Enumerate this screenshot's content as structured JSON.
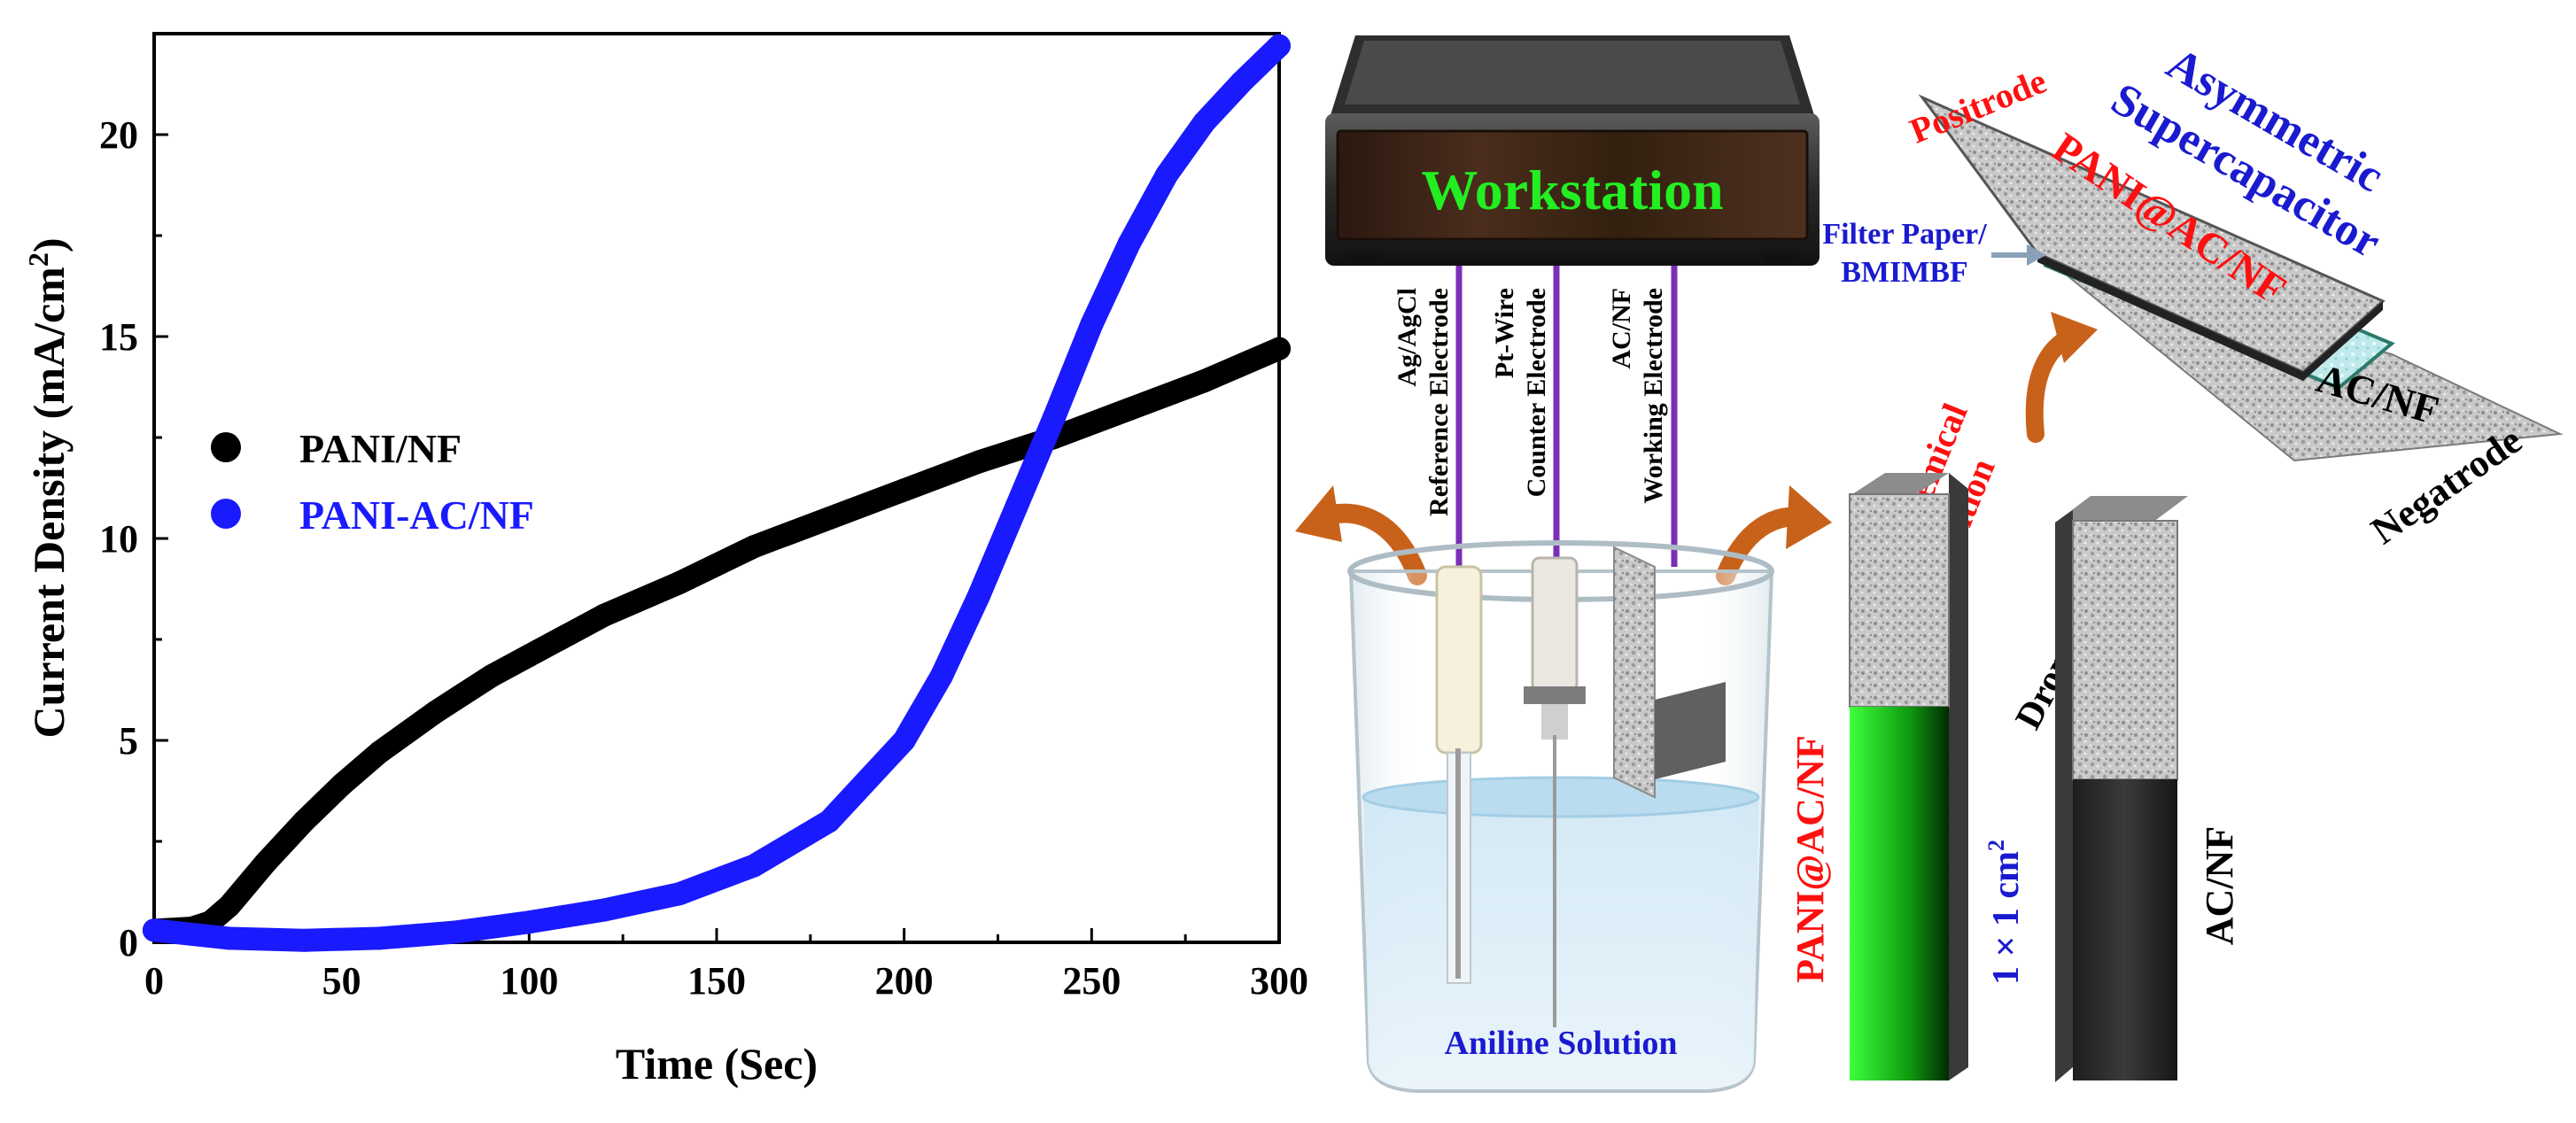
{
  "colors": {
    "series_black": "#000000",
    "series_blue": "#1a1aff",
    "label_red": "#ff1010",
    "label_blue": "#1a1ad0",
    "label_green": "#22ee22",
    "arrow_orange": "#c8621b",
    "wire_purple": "#7a2fb5"
  },
  "chart_data": {
    "type": "line",
    "xlabel": "Time (Sec)",
    "ylabel": "Current Density (mA/cm",
    "ylabel_sup": "2",
    "ylabel_end": ")",
    "xlim": [
      0,
      300
    ],
    "ylim": [
      0,
      22.5
    ],
    "x_ticks": [
      0,
      50,
      100,
      150,
      200,
      250,
      300
    ],
    "y_ticks": [
      0,
      5,
      10,
      15,
      20
    ],
    "legend_position": "center-left",
    "grid": false,
    "series": [
      {
        "name": "PANI/NF",
        "color": "#000000",
        "x": [
          0,
          10,
          15,
          20,
          30,
          40,
          50,
          60,
          75,
          90,
          100,
          120,
          140,
          160,
          180,
          200,
          220,
          240,
          260,
          280,
          300
        ],
        "y": [
          0.3,
          0.35,
          0.5,
          0.9,
          2.0,
          3.0,
          3.9,
          4.7,
          5.7,
          6.6,
          7.1,
          8.1,
          8.9,
          9.8,
          10.5,
          11.2,
          11.9,
          12.5,
          13.2,
          13.9,
          14.7
        ]
      },
      {
        "name": "PANI-AC/NF",
        "color": "#1a1aff",
        "x": [
          0,
          20,
          40,
          60,
          80,
          100,
          120,
          140,
          160,
          180,
          200,
          210,
          220,
          230,
          240,
          250,
          260,
          270,
          280,
          290,
          300
        ],
        "y": [
          0.3,
          0.1,
          0.05,
          0.1,
          0.25,
          0.5,
          0.8,
          1.2,
          1.9,
          3.0,
          5.0,
          6.6,
          8.6,
          10.8,
          13.0,
          15.3,
          17.3,
          19.0,
          20.3,
          21.3,
          22.2
        ]
      }
    ]
  },
  "schematic": {
    "workstation_label": "Workstation",
    "electrodes": [
      {
        "line1": "Ag/AgCl",
        "line2": "Reference Electrode"
      },
      {
        "line1": "Pt-Wire",
        "line2": "Counter Electrode"
      },
      {
        "line1": "AC/NF",
        "line2": "Working Electrode"
      }
    ],
    "beaker_label": "Aniline Solution",
    "electrochemical_label_1": "Electrochemical",
    "electrochemical_label_2": "Deposition",
    "pani_strip_label": "PANI@AC/NF",
    "area_label": "1 × 1 cm",
    "area_sup": "2",
    "drop_casting_label": "Drop Casting",
    "acnf_strip_label": "AC/NF",
    "supercap_title_1": "Asymmetric",
    "supercap_title_2": "Supercapacitor",
    "positrode_label": "Positrode",
    "positrode_material": "PANI@AC/NF",
    "separator_label_1": "Filter Paper/",
    "separator_label_2": "BMIMBF",
    "negatrode_material": "AC/NF",
    "negatrode_label": "Negatrode"
  }
}
